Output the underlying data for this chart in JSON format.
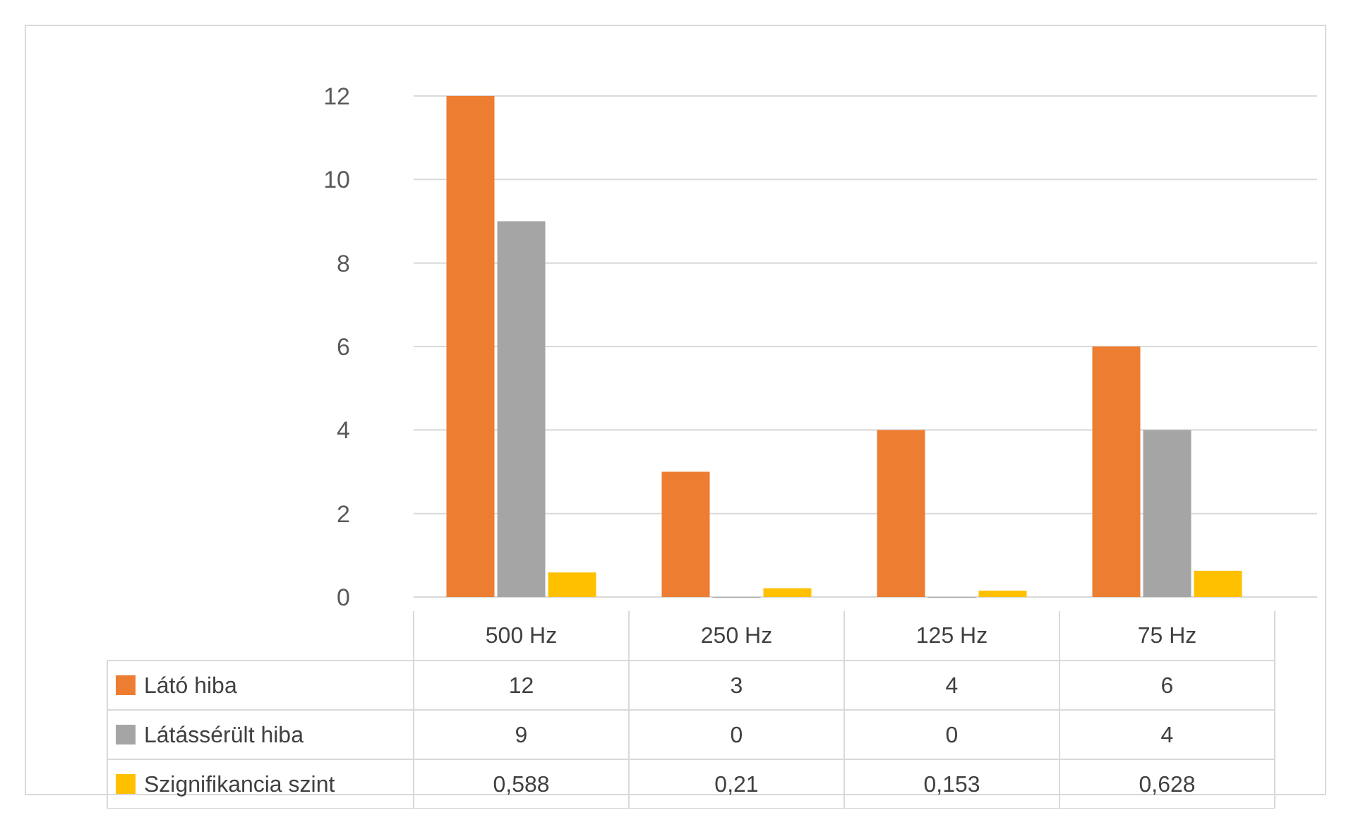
{
  "chart_data": {
    "type": "bar",
    "categories": [
      "500 Hz",
      "250 Hz",
      "125 Hz",
      "75 Hz"
    ],
    "series": [
      {
        "name": "Látó hiba",
        "color": "#ed7d31",
        "values": [
          12,
          3,
          4,
          6
        ],
        "value_labels": [
          "12",
          "3",
          "4",
          "6"
        ]
      },
      {
        "name": "Látássérült hiba",
        "color": "#a5a5a5",
        "values": [
          9,
          0,
          0,
          4
        ],
        "value_labels": [
          "9",
          "0",
          "0",
          "4"
        ]
      },
      {
        "name": "Szignifikancia szint",
        "color": "#ffc000",
        "values": [
          0.588,
          0.21,
          0.153,
          0.628
        ],
        "value_labels": [
          "0,588",
          "0,21",
          "0,153",
          "0,628"
        ]
      }
    ],
    "ylim": [
      0,
      12
    ],
    "yticks": [
      0,
      2,
      4,
      6,
      8,
      10,
      12
    ],
    "grid": "y",
    "legend": "bottom"
  }
}
